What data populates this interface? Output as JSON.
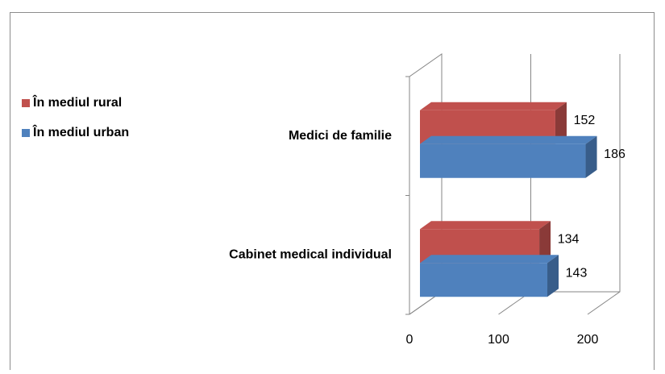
{
  "chart_data": {
    "type": "bar3d_horizontal",
    "categories": [
      "Medici de familie",
      "Cabinet medical individual"
    ],
    "series": [
      {
        "name": "În mediul rural",
        "color": "#c0504d",
        "side": "#8a3a38",
        "values": [
          152,
          134
        ]
      },
      {
        "name": "În mediul urban",
        "color": "#4f81bd",
        "side": "#385d8a",
        "values": [
          186,
          143
        ]
      }
    ],
    "xlim": [
      0,
      200
    ],
    "xticks": [
      0,
      100,
      200
    ],
    "grid": true,
    "legend": "left"
  }
}
